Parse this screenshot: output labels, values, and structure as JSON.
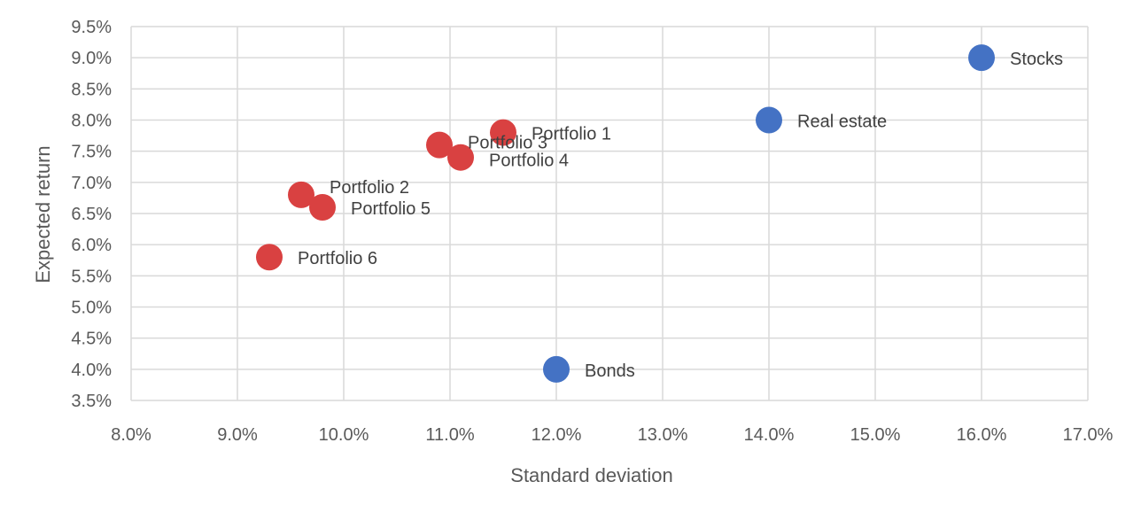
{
  "chart_data": {
    "type": "scatter",
    "xlabel": "Standard deviation",
    "ylabel": "Expected return",
    "xlim": [
      8.0,
      17.0
    ],
    "ylim": [
      3.5,
      9.5
    ],
    "x_ticks": [
      "8.0%",
      "9.0%",
      "10.0%",
      "11.0%",
      "12.0%",
      "13.0%",
      "14.0%",
      "15.0%",
      "16.0%",
      "17.0%"
    ],
    "y_ticks": [
      "3.5%",
      "4.0%",
      "4.5%",
      "5.0%",
      "5.5%",
      "6.0%",
      "6.5%",
      "7.0%",
      "7.5%",
      "8.0%",
      "8.5%",
      "9.0%",
      "9.5%"
    ],
    "grid": true,
    "series": [
      {
        "color": "#4472c4",
        "points": [
          {
            "label": "Stocks",
            "x": 16.0,
            "y": 9.0
          },
          {
            "label": "Real estate",
            "x": 14.0,
            "y": 8.0
          },
          {
            "label": "Bonds",
            "x": 12.0,
            "y": 4.0
          }
        ]
      },
      {
        "color": "#d94141",
        "points": [
          {
            "label": "Portfolio 1",
            "x": 11.5,
            "y": 7.8
          },
          {
            "label": "Portfolio 3",
            "x": 10.9,
            "y": 7.6
          },
          {
            "label": "Portfolio 4",
            "x": 11.1,
            "y": 7.4
          },
          {
            "label": "Portfolio 2",
            "x": 9.6,
            "y": 6.8
          },
          {
            "label": "Portfolio 5",
            "x": 9.8,
            "y": 6.6
          },
          {
            "label": "Portfolio 6",
            "x": 9.3,
            "y": 5.8
          }
        ]
      }
    ]
  }
}
